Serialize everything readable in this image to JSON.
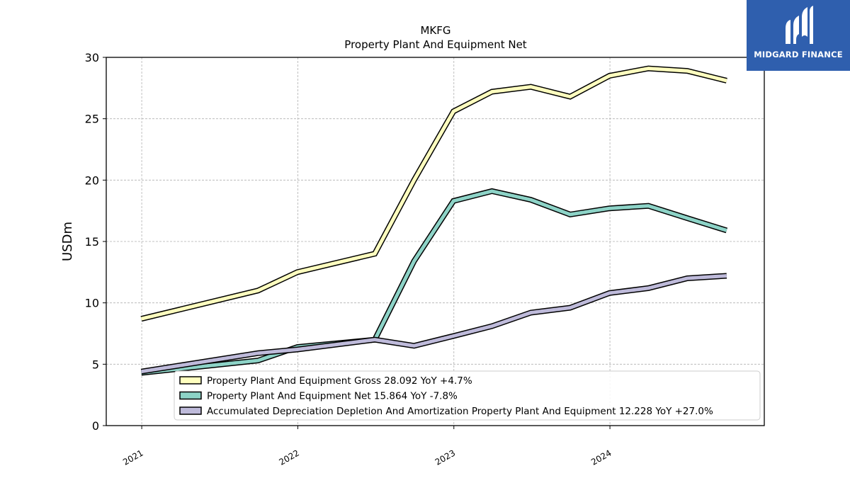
{
  "brand": {
    "name": "MIDGARD FINANCE",
    "color": "#2f5fae"
  },
  "chart_data": {
    "type": "line",
    "title": "MKFG",
    "subtitle": "Property Plant And Equipment Net",
    "xlabel": "",
    "ylabel": "USDm",
    "ylim": [
      0,
      30
    ],
    "xlim": [
      "2020-10-10",
      "2024-12-27"
    ],
    "yticks": [
      0,
      5,
      10,
      15,
      20,
      25,
      30
    ],
    "xticks": [
      "2021",
      "2022",
      "2023",
      "2024"
    ],
    "grid": true,
    "legend_position": "lower-right",
    "x": [
      "2020-12-31",
      "2021-09-30",
      "2021-12-31",
      "2022-06-30",
      "2022-09-30",
      "2022-12-31",
      "2023-03-31",
      "2023-06-30",
      "2023-09-30",
      "2023-12-31",
      "2024-03-31",
      "2024-06-30",
      "2024-09-30"
    ],
    "series": [
      {
        "name": "Property Plant And Equipment Gross",
        "legend": "Property Plant And Equipment Gross  28.092 YoY +4.7%",
        "color": "#ffffbf",
        "values": [
          8.7,
          11.0,
          12.5,
          14.0,
          20.0,
          25.6,
          27.2,
          27.6,
          26.8,
          28.5,
          29.1,
          28.9,
          28.1
        ]
      },
      {
        "name": "Property Plant And Equipment Net",
        "legend": "Property Plant And Equipment Net  15.864 YoY -7.8%",
        "color": "#8dd3c7",
        "values": [
          4.3,
          5.3,
          6.4,
          7.0,
          13.4,
          18.3,
          19.1,
          18.4,
          17.2,
          17.7,
          17.9,
          16.9,
          15.9
        ]
      },
      {
        "name": "Accumulated Depreciation Depletion And Amortization Property Plant And Equipment",
        "legend": "Accumulated Depreciation Depletion And Amortization Property Plant And Equipment  12.228 YoY +27.0%",
        "color": "#bebada",
        "values": [
          4.4,
          5.9,
          6.2,
          7.0,
          6.5,
          7.3,
          8.1,
          9.2,
          9.6,
          10.8,
          11.2,
          12.0,
          12.2
        ]
      }
    ]
  }
}
